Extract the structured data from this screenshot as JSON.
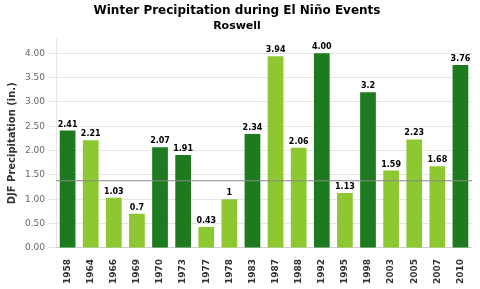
{
  "chart_data": {
    "type": "bar",
    "title": "Winter Precipitation during El Niño Events",
    "subtitle": "Roswell",
    "ylabel": "DJF Precipitation (in.)",
    "categories": [
      "1958",
      "1964",
      "1966",
      "1969",
      "1970",
      "1973",
      "1977",
      "1978",
      "1983",
      "1987",
      "1988",
      "1992",
      "1995",
      "1998",
      "2003",
      "2005",
      "2007",
      "2010"
    ],
    "values": [
      2.41,
      2.21,
      1.03,
      0.7,
      2.07,
      1.91,
      0.43,
      1.0,
      2.34,
      3.94,
      2.06,
      4.0,
      1.13,
      3.2,
      1.59,
      2.23,
      1.68,
      3.76
    ],
    "value_labels": [
      "2.41",
      "2.21",
      "1.03",
      "0.7",
      "2.07",
      "1.91",
      "0.43",
      "1",
      "2.34",
      "3.94",
      "2.06",
      "4.00",
      "1.13",
      "3.2",
      "1.59",
      "2.23",
      "1.68",
      "3.76"
    ],
    "colors": [
      "#1e7a1e",
      "#8dc830",
      "#8dc830",
      "#8dc830",
      "#1e7a1e",
      "#1e7a1e",
      "#8dc830",
      "#8dc830",
      "#1e7a1e",
      "#8dc830",
      "#8dc830",
      "#1e7a1e",
      "#8dc830",
      "#1e7a1e",
      "#8dc830",
      "#8dc830",
      "#8dc830",
      "#1e7a1e"
    ],
    "data_labels": true,
    "reference_line": 1.38,
    "ylim": [
      0,
      4.3
    ],
    "yticks": [
      {
        "value": 0,
        "label": "0.00"
      },
      {
        "value": 0.5,
        "label": "0.50"
      },
      {
        "value": 1,
        "label": "1.00"
      },
      {
        "value": 1.5,
        "label": "1.50"
      },
      {
        "value": 2,
        "label": "2.00"
      },
      {
        "value": 2.5,
        "label": "2.50"
      },
      {
        "value": 3,
        "label": "3.00"
      },
      {
        "value": 3.5,
        "label": "3.50"
      },
      {
        "value": 4,
        "label": "4.00"
      }
    ],
    "grid": true
  }
}
